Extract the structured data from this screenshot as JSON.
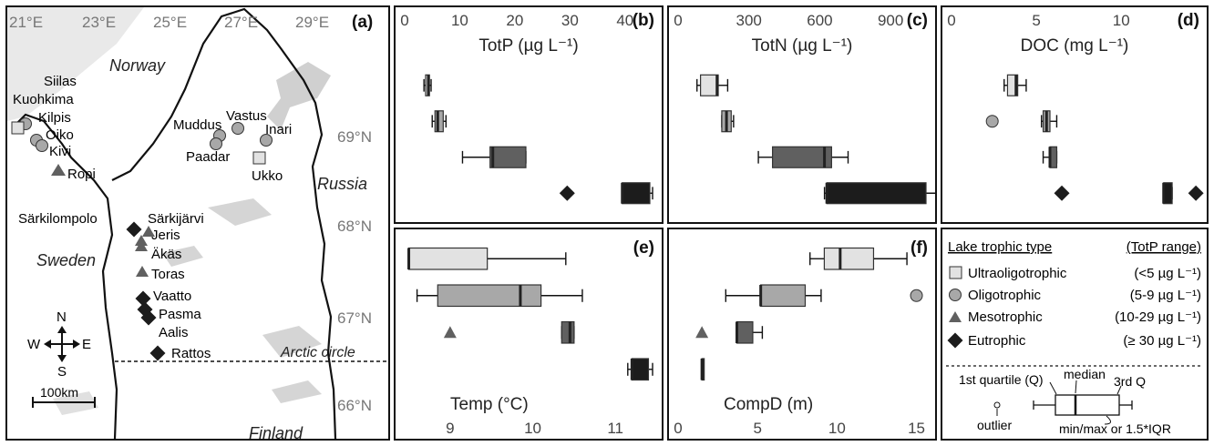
{
  "map": {
    "panel_label": "(a)",
    "lon_ticks": [
      "21°E",
      "23°E",
      "25°E",
      "27°E",
      "29°E"
    ],
    "lat_ticks": [
      "69°N",
      "68°N",
      "67°N",
      "66°N"
    ],
    "countries": {
      "norway": "Norway",
      "russia": "Russia",
      "sweden": "Sweden",
      "finland": "Finland"
    },
    "arctic_label": "Arctic circle",
    "compass": {
      "n": "N",
      "s": "S",
      "e": "E",
      "w": "W"
    },
    "scale_label": "100km",
    "lakes": [
      {
        "name": "Siilas",
        "type": "oligotrophic"
      },
      {
        "name": "Kuohkima",
        "type": "oligotrophic"
      },
      {
        "name": "Kilpis",
        "type": "ultraoligotrophic"
      },
      {
        "name": "Oiko",
        "type": "oligotrophic"
      },
      {
        "name": "Kivi",
        "type": "oligotrophic"
      },
      {
        "name": "Ropi",
        "type": "mesotrophic"
      },
      {
        "name": "Muddus",
        "type": "oligotrophic"
      },
      {
        "name": "Vastus",
        "type": "oligotrophic"
      },
      {
        "name": "Inari",
        "type": "oligotrophic"
      },
      {
        "name": "Paadar",
        "type": "oligotrophic"
      },
      {
        "name": "Ukko",
        "type": "ultraoligotrophic"
      },
      {
        "name": "Särkilompolo",
        "type": "eutrophic"
      },
      {
        "name": "Särkijärvi",
        "type": "mesotrophic"
      },
      {
        "name": "Jeris",
        "type": "mesotrophic"
      },
      {
        "name": "Äkäs",
        "type": "mesotrophic"
      },
      {
        "name": "Toras",
        "type": "mesotrophic"
      },
      {
        "name": "Vaatto",
        "type": "eutrophic"
      },
      {
        "name": "Pasma",
        "type": "eutrophic"
      },
      {
        "name": "Aalis",
        "type": "eutrophic"
      },
      {
        "name": "Rattos",
        "type": "eutrophic"
      }
    ]
  },
  "colors": {
    "ultraoligotrophic": "#e2e2e2",
    "oligotrophic": "#a8a8a8",
    "mesotrophic": "#606060",
    "eutrophic": "#1c1c1c"
  },
  "legend": {
    "header_type": "Lake trophic type",
    "header_range": "(TotP range)",
    "items": [
      {
        "label": "Ultraoligotrophic",
        "range": "(<5 µg L⁻¹)",
        "type": "ultraoligotrophic"
      },
      {
        "label": "Oligotrophic",
        "range": "(5-9 µg L⁻¹)",
        "type": "oligotrophic"
      },
      {
        "label": "Mesotrophic",
        "range": "(10-29 µg L⁻¹)",
        "type": "mesotrophic"
      },
      {
        "label": "Eutrophic",
        "range": "(≥ 30 µg L⁻¹)",
        "type": "eutrophic"
      }
    ],
    "key": {
      "q1": "1st quartile (Q)",
      "median": "median",
      "q3": "3rd Q",
      "outlier": "outlier",
      "minmax": "min/max or 1.5*IQR"
    }
  },
  "chart_data": [
    {
      "type": "box",
      "panel": "(b)",
      "title": "TotP (µg L⁻¹)",
      "axis": {
        "position": "top",
        "lim": [
          0,
          45
        ],
        "ticks": [
          0,
          10,
          20,
          30,
          40
        ]
      },
      "groups": [
        {
          "type": "ultraoligotrophic",
          "q1": 3.8,
          "median": 4.3,
          "q3": 4.5,
          "wmin": 3.5,
          "wmax": 4.8,
          "outliers": []
        },
        {
          "type": "oligotrophic",
          "q1": 5.5,
          "median": 6.0,
          "q3": 7.0,
          "wmin": 5.0,
          "wmax": 7.5,
          "outliers": []
        },
        {
          "type": "mesotrophic",
          "q1": 15.5,
          "median": 16.0,
          "q3": 22.0,
          "wmin": 10.5,
          "wmax": 22.0,
          "outliers": []
        },
        {
          "type": "eutrophic",
          "q1": 39.5,
          "median": 39.5,
          "q3": 44.5,
          "wmin": 39.5,
          "wmax": 45.0,
          "outliers": [
            29.5
          ]
        }
      ]
    },
    {
      "type": "box",
      "panel": "(c)",
      "title": "TotN (µg L⁻¹)",
      "axis": {
        "position": "top",
        "lim": [
          0,
          1050
        ],
        "ticks": [
          0,
          300,
          600,
          900
        ]
      },
      "groups": [
        {
          "type": "ultraoligotrophic",
          "q1": 95,
          "median": 165,
          "q3": 170,
          "wmin": 80,
          "wmax": 210,
          "outliers": []
        },
        {
          "type": "oligotrophic",
          "q1": 185,
          "median": 205,
          "q3": 225,
          "wmin": 185,
          "wmax": 235,
          "outliers": []
        },
        {
          "type": "mesotrophic",
          "q1": 400,
          "median": 620,
          "q3": 650,
          "wmin": 340,
          "wmax": 720,
          "outliers": []
        },
        {
          "type": "eutrophic",
          "q1": 630,
          "median": 630,
          "q3": 1050,
          "wmin": 620,
          "wmax": 1285,
          "outliers": []
        }
      ]
    },
    {
      "type": "box",
      "panel": "(d)",
      "title": "DOC (mg L⁻¹)",
      "axis": {
        "position": "top",
        "lim": [
          0,
          14.5
        ],
        "ticks": [
          0,
          5,
          10
        ]
      },
      "groups": [
        {
          "type": "ultraoligotrophic",
          "q1": 3.3,
          "median": 3.8,
          "q3": 3.9,
          "wmin": 3.1,
          "wmax": 4.4,
          "outliers": []
        },
        {
          "type": "oligotrophic",
          "q1": 5.4,
          "median": 5.6,
          "q3": 5.8,
          "wmin": 5.3,
          "wmax": 6.2,
          "outliers": [
            2.4
          ]
        },
        {
          "type": "mesotrophic",
          "q1": 5.8,
          "median": 5.8,
          "q3": 6.2,
          "wmin": 5.4,
          "wmax": 6.2,
          "outliers": []
        },
        {
          "type": "eutrophic",
          "q1": 12.5,
          "median": 12.5,
          "q3": 13.0,
          "wmin": 12.5,
          "wmax": 13.0,
          "outliers": [
            6.5,
            14.4
          ]
        }
      ]
    },
    {
      "type": "box",
      "panel": "(e)",
      "title": "Temp (°C)",
      "axis": {
        "position": "bottom",
        "lim": [
          8.45,
          11.45
        ],
        "ticks": [
          9,
          10,
          11
        ]
      },
      "groups": [
        {
          "type": "ultraoligotrophic",
          "q1": 8.5,
          "median": 8.5,
          "q3": 9.45,
          "wmin": 8.5,
          "wmax": 10.4,
          "outliers": []
        },
        {
          "type": "oligotrophic",
          "q1": 8.85,
          "median": 9.85,
          "q3": 10.1,
          "wmin": 8.6,
          "wmax": 10.6,
          "outliers": []
        },
        {
          "type": "mesotrophic",
          "q1": 10.35,
          "median": 10.45,
          "q3": 10.5,
          "wmin": 10.35,
          "wmax": 10.5,
          "outliers": [
            9.0
          ]
        },
        {
          "type": "eutrophic",
          "q1": 11.2,
          "median": 11.2,
          "q3": 11.4,
          "wmin": 11.15,
          "wmax": 11.45,
          "outliers": []
        }
      ]
    },
    {
      "type": "box",
      "panel": "(f)",
      "title": "CompD (m)",
      "axis": {
        "position": "bottom",
        "lim": [
          0,
          15.6
        ],
        "ticks": [
          0,
          5,
          10,
          15
        ]
      },
      "groups": [
        {
          "type": "ultraoligotrophic",
          "q1": 9.2,
          "median": 10.2,
          "q3": 12.3,
          "wmin": 8.3,
          "wmax": 14.4,
          "outliers": []
        },
        {
          "type": "oligotrophic",
          "q1": 5.2,
          "median": 5.2,
          "q3": 8.0,
          "wmin": 3.0,
          "wmax": 9.0,
          "outliers": [
            15.0
          ]
        },
        {
          "type": "mesotrophic",
          "q1": 3.7,
          "median": 3.7,
          "q3": 4.7,
          "wmin": 3.7,
          "wmax": 5.3,
          "outliers": [
            1.5
          ]
        },
        {
          "type": "eutrophic",
          "q1": 1.5,
          "median": 1.5,
          "q3": 1.5,
          "wmin": 1.5,
          "wmax": 1.5,
          "outliers": []
        }
      ]
    }
  ]
}
